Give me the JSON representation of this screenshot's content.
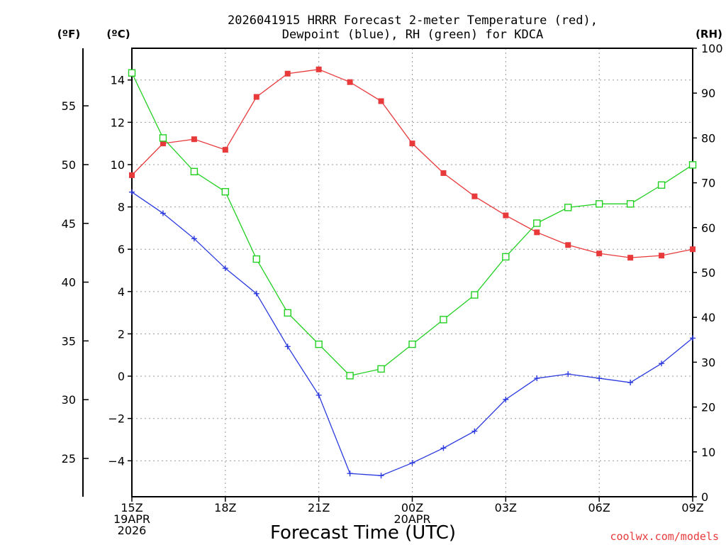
{
  "chart_data": {
    "type": "line",
    "title_line1": "2026041915 HRRR Forecast 2-meter Temperature (red),",
    "title_line2": "Dewpoint (blue), RH (green) for KDCA",
    "xlabel": "Forecast Time (UTC)",
    "credit": "coolwx.com/models",
    "unit_f": "(ºF)",
    "unit_c": "(ºC)",
    "unit_rh": "(RH)",
    "x_hours": [
      0,
      1,
      2,
      3,
      4,
      5,
      6,
      7,
      8,
      9,
      10,
      11,
      12,
      13,
      14,
      15,
      16,
      17,
      18
    ],
    "x_ticks": [
      {
        "hour": 0,
        "lines": [
          "15Z",
          "19APR",
          "2026"
        ]
      },
      {
        "hour": 3,
        "lines": [
          "18Z"
        ]
      },
      {
        "hour": 6,
        "lines": [
          "21Z"
        ]
      },
      {
        "hour": 9,
        "lines": [
          "00Z",
          "20APR"
        ]
      },
      {
        "hour": 12,
        "lines": [
          "03Z"
        ]
      },
      {
        "hour": 15,
        "lines": [
          "06Z"
        ]
      },
      {
        "hour": 18,
        "lines": [
          "09Z"
        ]
      }
    ],
    "ylim_c": [
      -5.7,
      15.5
    ],
    "yticks_c": [
      "-4",
      "-2",
      "0",
      "2",
      "4",
      "6",
      "8",
      "10",
      "12",
      "14"
    ],
    "yticks_f": [
      "25",
      "30",
      "35",
      "40",
      "45",
      "50",
      "55"
    ],
    "ylim_rh": [
      0,
      100
    ],
    "yticks_rh": [
      "0",
      "10",
      "20",
      "30",
      "40",
      "50",
      "60",
      "70",
      "80",
      "90",
      "100"
    ],
    "series": [
      {
        "name": "Temperature",
        "axis": "c",
        "color": "#e8393b",
        "marker": "filled-square",
        "values": [
          9.5,
          11,
          11.2,
          10.7,
          13.2,
          14.3,
          14.5,
          13.9,
          13,
          11,
          9.6,
          8.5,
          7.6,
          6.8,
          6.2,
          5.8,
          5.6,
          5.7,
          6
        ]
      },
      {
        "name": "Dewpoint",
        "axis": "c",
        "color": "#2a3adf",
        "marker": "plus",
        "values": [
          8.7,
          7.7,
          6.5,
          5.1,
          3.9,
          1.4,
          -0.9,
          -4.6,
          -4.7,
          -4.1,
          -3.4,
          -2.6,
          -1.1,
          -0.1,
          0.1,
          -0.1,
          -0.3,
          0.6,
          1.8
        ]
      },
      {
        "name": "RH",
        "axis": "rh",
        "color": "#22d022",
        "marker": "open-square",
        "values": [
          94.5,
          80,
          72.5,
          68,
          53,
          41,
          34,
          27,
          28.5,
          34,
          39.5,
          45,
          53.5,
          61,
          64.5,
          65.3,
          65.3,
          69.5,
          74
        ]
      }
    ]
  }
}
